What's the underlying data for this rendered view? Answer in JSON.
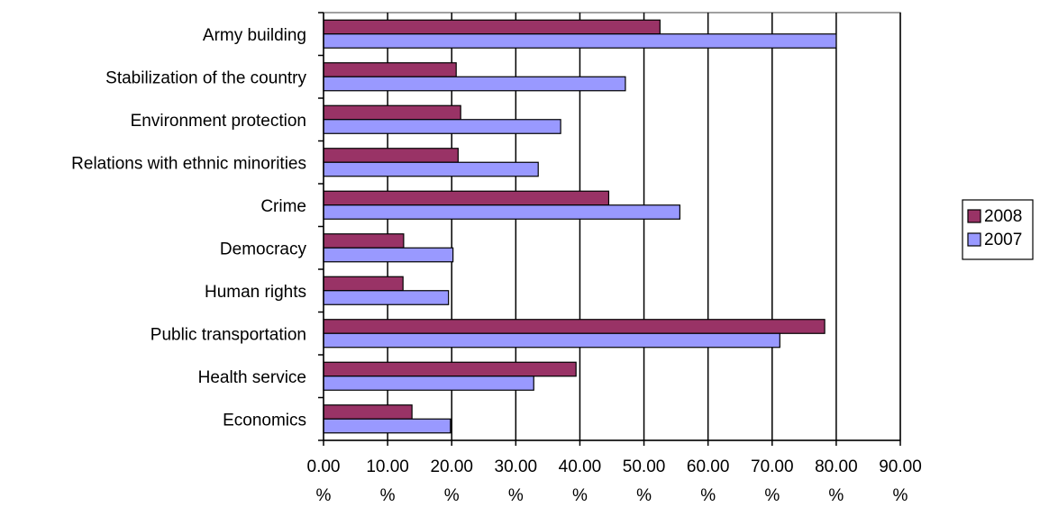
{
  "chart_data": {
    "type": "bar",
    "orientation": "horizontal",
    "title": "",
    "xlabel": "",
    "ylabel": "",
    "xlim": [
      0,
      90
    ],
    "x_ticks": [
      {
        "value": 0,
        "label": "0.00",
        "unit": "%"
      },
      {
        "value": 10,
        "label": "10.00",
        "unit": "%"
      },
      {
        "value": 20,
        "label": "20.00",
        "unit": "%"
      },
      {
        "value": 30,
        "label": "30.00",
        "unit": "%"
      },
      {
        "value": 40,
        "label": "40.00",
        "unit": "%"
      },
      {
        "value": 50,
        "label": "50.00",
        "unit": "%"
      },
      {
        "value": 60,
        "label": "60.00",
        "unit": "%"
      },
      {
        "value": 70,
        "label": "70.00",
        "unit": "%"
      },
      {
        "value": 80,
        "label": "80.00",
        "unit": "%"
      },
      {
        "value": 90,
        "label": "90.00",
        "unit": "%"
      }
    ],
    "grid": "vertical",
    "legend_position": "right",
    "categories": [
      "Army building",
      "Stabilization of the country",
      "Environment protection",
      "Relations with ethnic minorities",
      "Crime",
      "Democracy",
      "Human rights",
      "Public transportation",
      "Health service",
      "Economics"
    ],
    "series": [
      {
        "name": "2008",
        "color": "#993366",
        "values": [
          52.5,
          20.7,
          21.4,
          21.0,
          44.5,
          12.5,
          12.4,
          78.2,
          39.4,
          13.8
        ]
      },
      {
        "name": "2007",
        "color": "#9999ff",
        "values": [
          80.0,
          47.1,
          37.0,
          33.5,
          55.6,
          20.2,
          19.5,
          71.2,
          32.8,
          19.8
        ]
      }
    ]
  }
}
